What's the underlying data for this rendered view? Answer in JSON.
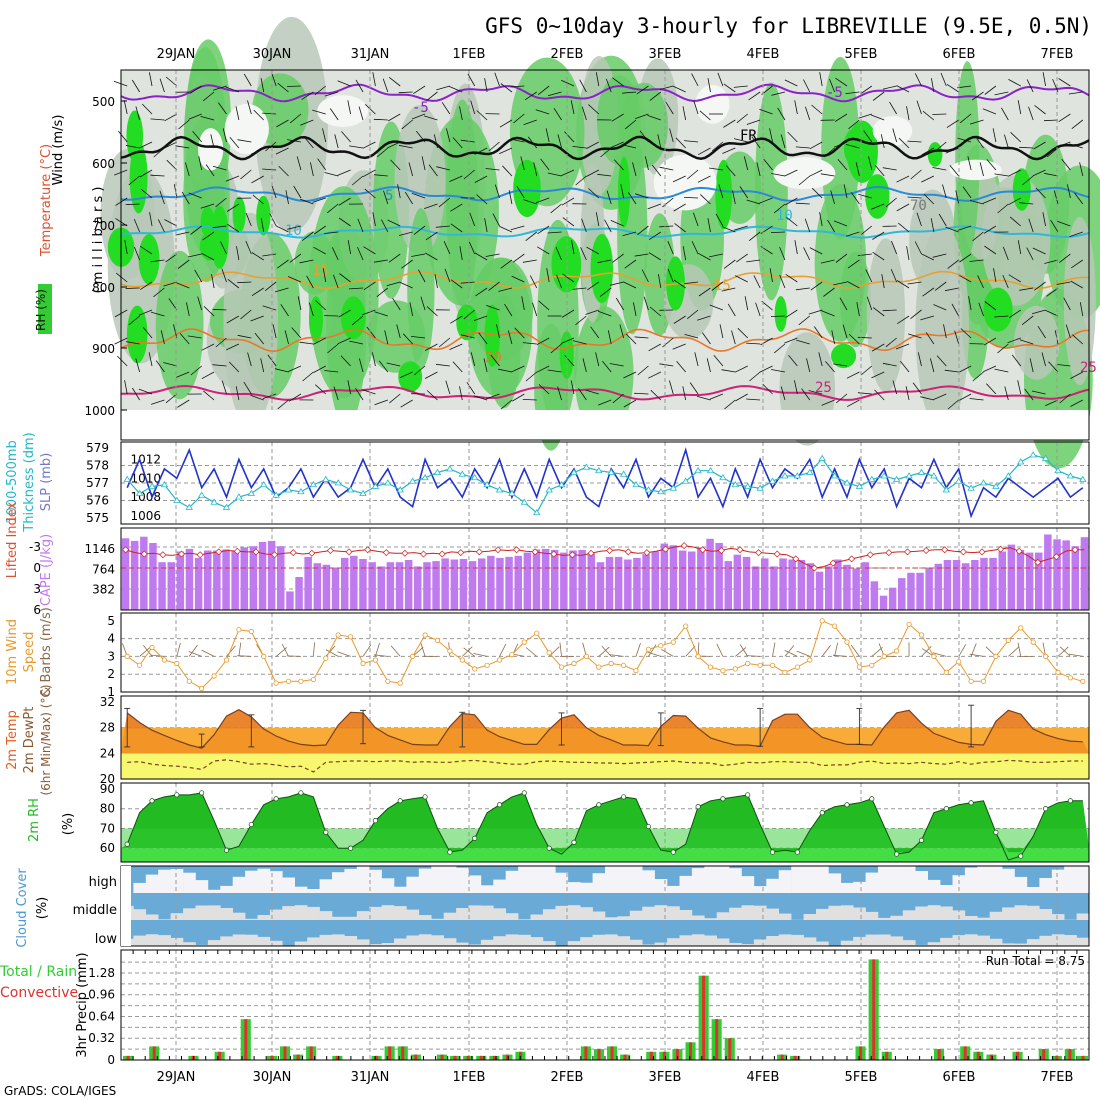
{
  "chart_data": {
    "type": "meteogram",
    "title": "GFS 0~10day 3-hourly for LIBREVILLE (9.5E, 0.5N)",
    "footer": "GrADS: COLA/IGES",
    "date_labels": [
      "29JAN",
      "30JAN",
      "31JAN",
      "1FEB",
      "2FEB",
      "3FEB",
      "4FEB",
      "5FEB",
      "6FEB",
      "7FEB"
    ],
    "colors": {
      "rh_green": "#33cc33",
      "rain": "#33cc33",
      "convective": "#e03030",
      "cape": "#c07af0",
      "sky": "#6aaad6",
      "slp": "#2233cc",
      "thickness": "#22b8c8",
      "wind10": "#e89a2a",
      "temp": "#e8881c",
      "dew": "#f8f870",
      "rh2m": "#22bb22",
      "purple": "#8a22c8"
    },
    "panels": [
      {
        "id": "upper_air",
        "ylabels": [
          "RH (%)",
          "Temperature (°C)",
          "Wind (m/s)",
          "( m i l l i b a r s )"
        ],
        "levels": [
          "500",
          "600",
          "700",
          "800",
          "900",
          "1000"
        ],
        "contour_labels": [
          "-5",
          "FR",
          "5",
          "10",
          "15",
          "20",
          "25",
          "-5",
          "10",
          "15",
          "25",
          "70"
        ]
      },
      {
        "id": "slp_thickness",
        "ylabels": [
          "1000-500mb",
          "Thickness (dm)",
          "SLP (mb)"
        ],
        "thickness_ticks": [
          "579",
          "578",
          "577",
          "576",
          "575"
        ],
        "slp_ticks": [
          "1012",
          "1010",
          "1008",
          "1006"
        ],
        "slp": [
          1009,
          1012,
          1008,
          1011,
          1010,
          1013,
          1009,
          1011,
          1008,
          1012,
          1009,
          1011,
          1008,
          1009,
          1011,
          1008,
          1010,
          1008,
          1009,
          1012,
          1009,
          1011,
          1008,
          1007,
          1012,
          1009,
          1010,
          1008,
          1011,
          1009,
          1012,
          1008,
          1011,
          1008,
          1012,
          1009,
          1011,
          1008,
          1007,
          1011,
          1009,
          1012,
          1008,
          1010,
          1009,
          1013,
          1008,
          1010,
          1007,
          1011,
          1008,
          1012,
          1009,
          1011,
          1010,
          1012,
          1008,
          1011,
          1008,
          1012,
          1009,
          1011,
          1007,
          1010,
          1009,
          1012,
          1009,
          1011,
          1006,
          1009,
          1008,
          1010,
          1009,
          1008,
          1009,
          1010,
          1008,
          1009
        ],
        "thickness": [
          577.2,
          576.4,
          576.8,
          576.9,
          576.0,
          575.6,
          576.3,
          575.9,
          575.6,
          576.2,
          576.4,
          576.9,
          576.3,
          576.6,
          576.5,
          576.9,
          577.2,
          577.0,
          576.6,
          576.4,
          576.8,
          577.0,
          576.6,
          577.1,
          577.3,
          577.6,
          577.8,
          577.5,
          577.3,
          576.9,
          576.6,
          576.4,
          575.9,
          575.3,
          576.6,
          576.9,
          577.6,
          577.9,
          577.7,
          577.6,
          577.5,
          576.9,
          576.6,
          576.5,
          576.7,
          577.1,
          577.7,
          577.7,
          577.3,
          576.9,
          576.8,
          576.7,
          577.1,
          577.4,
          577.4,
          577.6,
          578.4,
          577.4,
          577.0,
          576.8,
          577.2,
          577.4,
          577.2,
          577.4,
          577.6,
          577.4,
          576.6,
          577.1,
          576.7,
          577.0,
          576.8,
          577.4,
          578.2,
          578.6,
          578.4,
          577.7,
          577.4,
          577.2
        ]
      },
      {
        "id": "cape_li",
        "ylabels": [
          "Lifted Index",
          "CAPE (J/kg)"
        ],
        "li_ticks": [
          "-3",
          "0",
          "3",
          "6"
        ],
        "cape_ticks": [
          "1146",
          "764",
          "382"
        ],
        "cape": [
          1350,
          1300,
          1380,
          1260,
          900,
          900,
          1100,
          1150,
          980,
          1120,
          1120,
          1140,
          1120,
          1180,
          1200,
          1280,
          1300,
          1200,
          350,
          620,
          1000,
          880,
          850,
          800,
          980,
          1020,
          960,
          900,
          820,
          900,
          900,
          940,
          820,
          900,
          920,
          970,
          950,
          960,
          920,
          970,
          1020,
          980,
          1000,
          1020,
          1080,
          1140,
          1150,
          1130,
          1080,
          1120,
          1130,
          1060,
          900,
          1000,
          1000,
          950,
          980,
          1050,
          1100,
          1250,
          1220,
          1120,
          1100,
          1180,
          1340,
          1260,
          920,
          1040,
          1000,
          820,
          970,
          820,
          970,
          950,
          940,
          880,
          720,
          820,
          950,
          850,
          780,
          900,
          540,
          270,
          420,
          600,
          700,
          700,
          780,
          870,
          940,
          940,
          880,
          940,
          980,
          980,
          1100,
          1230,
          1130,
          1080,
          1080,
          1420,
          1330,
          1310,
          1200,
          1370
        ],
        "lifted_index": [
          -2.6,
          -2.2,
          -2.0,
          -2.1,
          -1.9,
          -1.8,
          -2.0,
          -2.1,
          -1.9,
          -2.1,
          -2.3,
          -2.5,
          -2.4,
          -2.3,
          -2.3,
          -2.0,
          -1.9,
          -2.1,
          -2.2,
          -2.0,
          -2.1,
          -2.3,
          -2.5,
          -2.4,
          -2.3,
          -2.5,
          -2.6,
          -2.4,
          -2.2,
          -2.1,
          -2.1,
          -2.2,
          -2.0,
          -2.1,
          -2.0,
          -2.3,
          -2.2,
          -2.4,
          -2.3,
          -2.4,
          -2.6,
          -2.5,
          -2.6,
          -2.4,
          -2.3,
          -2.1,
          -2.0,
          -1.8,
          -1.9,
          -1.8,
          -2.1,
          -2.4,
          -2.5,
          -2.6,
          -2.3,
          -2.1,
          -2.2,
          -2.4,
          -2.7,
          -3.0,
          -3.2,
          -3.0,
          -2.6,
          -2.4,
          -2.5,
          -2.8,
          -2.6,
          -2.3,
          -2.2,
          -2.1,
          -2.0,
          -1.9,
          -1.3,
          -0.6,
          0.0,
          -0.2,
          -0.7,
          -1.0,
          -1.3,
          -1.6,
          -1.9,
          -2.1,
          -2.2,
          -2.3,
          -2.3,
          -2.4,
          -2.5,
          -2.6,
          -2.6,
          -2.4,
          -2.3,
          -2.2,
          -2.3,
          -2.5,
          -2.7,
          -2.9,
          -2.4,
          -1.7,
          -0.8,
          -1.2,
          -1.6,
          -2.4,
          -2.6,
          -2.6
        ]
      },
      {
        "id": "wind10",
        "ylabels": [
          "10m Wind",
          "Speed",
          "& Barbs (m/s)"
        ],
        "ticks": [
          "5",
          "4",
          "3",
          "2",
          "1"
        ],
        "speed": [
          3.0,
          2.5,
          3.5,
          2.8,
          2.6,
          1.6,
          1.2,
          1.9,
          2.8,
          4.5,
          4.4,
          3.0,
          1.5,
          1.6,
          1.6,
          1.7,
          2.9,
          4.2,
          4.1,
          2.6,
          2.8,
          1.6,
          1.5,
          3.0,
          4.2,
          3.9,
          3.3,
          2.8,
          2.3,
          2.5,
          2.8,
          3.1,
          3.8,
          4.3,
          3.2,
          2.4,
          2.6,
          3.0,
          2.4,
          2.6,
          2.5,
          2.2,
          3.4,
          3.6,
          3.8,
          4.7,
          3.0,
          2.4,
          2.2,
          2.3,
          2.6,
          2.5,
          2.5,
          2.1,
          2.4,
          2.8,
          5.0,
          4.7,
          3.8,
          2.4,
          2.5,
          3.0,
          3.3,
          4.8,
          4.2,
          3.0,
          2.1,
          2.7,
          1.6,
          1.6,
          3.0,
          3.9,
          4.6,
          3.8,
          3.0,
          2.1,
          1.8,
          1.6
        ]
      },
      {
        "id": "temp2m",
        "ylabels": [
          "2m Temp",
          "2m DewPt",
          "(6hr Min/Max) (°C)"
        ],
        "ticks": [
          "32",
          "28",
          "24",
          "20"
        ],
        "temp": [
          30.3,
          28.8,
          27.6,
          26.8,
          26.0,
          25.3,
          24.8,
          26.9,
          29.8,
          30.8,
          29.7,
          27.8,
          26.7,
          25.9,
          25.4,
          25.2,
          25.3,
          28.4,
          30.4,
          30.3,
          28.0,
          26.8,
          26.1,
          25.4,
          25.3,
          25.3,
          28.2,
          30.2,
          30.0,
          27.6,
          26.6,
          26.0,
          25.4,
          25.4,
          27.7,
          29.5,
          30.0,
          28.0,
          26.8,
          26.1,
          25.3,
          25.3,
          25.2,
          28.2,
          29.9,
          29.8,
          27.9,
          26.4,
          25.8,
          25.3,
          25.3,
          25.1,
          29.1,
          30.1,
          30.1,
          28.0,
          26.5,
          25.9,
          25.4,
          25.4,
          25.3,
          28.1,
          30.3,
          30.7,
          28.7,
          27.1,
          26.4,
          25.7,
          25.4,
          25.3,
          29.0,
          30.7,
          30.1,
          27.8,
          26.9,
          26.3,
          25.9,
          25.8
        ],
        "dew": [
          22.6,
          22.7,
          22.3,
          22.1,
          22.0,
          21.8,
          21.5,
          22.8,
          23.0,
          22.7,
          22.3,
          22.4,
          22.2,
          21.9,
          22.0,
          21.1,
          22.6,
          22.7,
          22.8,
          22.8,
          22.7,
          22.8,
          22.8,
          22.6,
          22.7,
          22.6,
          22.6,
          22.8,
          22.9,
          22.7,
          22.5,
          22.3,
          22.3,
          22.7,
          22.8,
          22.7,
          22.6,
          22.6,
          22.5,
          22.5,
          22.4,
          22.5,
          22.6,
          22.7,
          22.8,
          22.6,
          22.5,
          22.5,
          22.1,
          22.3,
          22.6,
          22.5,
          22.7,
          22.7,
          22.6,
          22.6,
          22.1,
          22.2,
          22.2,
          22.6,
          22.8,
          22.4,
          22.5,
          22.4,
          22.6,
          22.4,
          22.3,
          22.7,
          22.3,
          22.6,
          22.7,
          22.9,
          22.8,
          22.6,
          22.6,
          22.7,
          22.8,
          22.8
        ],
        "max6h": [
          31,
          null,
          null,
          null,
          null,
          null,
          27,
          null,
          null,
          null,
          30,
          null,
          null,
          null,
          null,
          null,
          null,
          null,
          null,
          30.7,
          null,
          null,
          null,
          null,
          null,
          null,
          null,
          30.4,
          null,
          null,
          null,
          null,
          null,
          null,
          null,
          30.3,
          null,
          null,
          null,
          null,
          null,
          null,
          null,
          30.3,
          null,
          null,
          null,
          null,
          null,
          null,
          null,
          31,
          null,
          null,
          null,
          null,
          null,
          null,
          null,
          31,
          null,
          null,
          null,
          null,
          null,
          null,
          null,
          null,
          31.5,
          null,
          null,
          null,
          null,
          null,
          null,
          null,
          null,
          null
        ],
        "min6h": [
          null,
          null,
          null,
          null,
          null,
          null,
          null,
          25,
          null,
          null,
          null,
          null,
          25,
          null,
          null,
          null,
          null,
          null,
          25.4,
          null,
          null,
          null,
          null,
          null,
          null,
          null,
          25.5,
          null,
          null,
          null,
          null,
          null,
          null,
          null,
          25.0,
          null,
          null,
          null,
          null,
          null,
          null,
          null,
          25.3,
          null,
          null,
          null,
          null,
          null,
          null,
          null,
          25.2,
          null,
          null,
          null,
          null,
          null,
          null,
          null,
          25.1,
          null,
          null,
          null,
          null,
          null,
          null,
          null,
          25.4,
          null,
          null,
          null,
          null,
          null,
          null,
          null,
          null,
          null
        ]
      },
      {
        "id": "rh2m",
        "ylabels": [
          "2m RH",
          "(%)"
        ],
        "ticks": [
          "90",
          "80",
          "70",
          "60"
        ],
        "rh": [
          62,
          78,
          84,
          86,
          87,
          87,
          88,
          74,
          59,
          61,
          72,
          82,
          85,
          86,
          88,
          86,
          68,
          60,
          60,
          64,
          74,
          80,
          84,
          85,
          86,
          70,
          58,
          59,
          65,
          78,
          82,
          86,
          88,
          72,
          60,
          57,
          63,
          79,
          82,
          84,
          86,
          85,
          71,
          59,
          58,
          62,
          81,
          84,
          85,
          86,
          87,
          72,
          58,
          59,
          58,
          69,
          78,
          81,
          82,
          83,
          85,
          71,
          57,
          58,
          64,
          78,
          80,
          82,
          83,
          84,
          68,
          54,
          56,
          66,
          80,
          83,
          84,
          84
        ]
      },
      {
        "id": "cloud",
        "ylabels": [
          "Cloud Cover",
          "(%)"
        ],
        "rows": [
          "high",
          "middle",
          "low"
        ]
      },
      {
        "id": "precip",
        "ylabels": [
          "Total / Rain",
          "Convective",
          "3hr Precip (mm)"
        ],
        "ticks": [
          "1.28",
          "0.96",
          "0.64",
          "0.32",
          "0"
        ],
        "run_total_label": "Run Total = 8.75",
        "total": [
          0.06,
          0,
          0.2,
          0,
          0,
          0.06,
          0,
          0.12,
          0,
          0.6,
          0,
          0.06,
          0.2,
          0.08,
          0.2,
          0,
          0.06,
          0,
          0,
          0.06,
          0.2,
          0.2,
          0.08,
          0,
          0.08,
          0.06,
          0.06,
          0.06,
          0.06,
          0.08,
          0.12,
          0,
          0,
          0,
          0,
          0.2,
          0.16,
          0.2,
          0.08,
          0,
          0.12,
          0.12,
          0.16,
          0.26,
          1.24,
          0.6,
          0.32,
          0,
          0,
          0,
          0.08,
          0.06,
          0,
          0,
          0,
          0,
          0.2,
          1.48,
          0.12,
          0,
          0,
          0,
          0.16,
          0,
          0.2,
          0.12,
          0.08,
          0,
          0.12,
          0,
          0.16,
          0.06,
          0.16,
          0.06
        ]
      }
    ]
  }
}
